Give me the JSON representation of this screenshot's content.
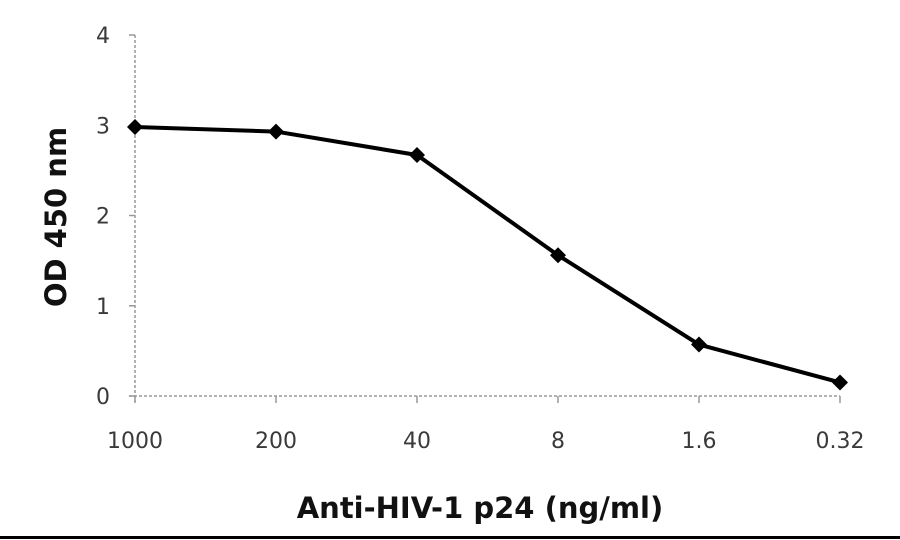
{
  "chart_data": {
    "type": "line",
    "title": "",
    "xlabel": "Anti-HIV-1 p24  (ng/ml)",
    "ylabel": "OD 450 nm",
    "categories": [
      "1000",
      "200",
      "40",
      "8",
      "1.6",
      "0.32"
    ],
    "series": [
      {
        "name": "OD 450 nm",
        "values": [
          2.98,
          2.93,
          2.67,
          1.56,
          0.57,
          0.15
        ],
        "color": "#000000",
        "marker": "diamond"
      }
    ],
    "ylim": [
      0,
      4
    ],
    "yticks": [
      0,
      1,
      2,
      3,
      4
    ],
    "grid": false,
    "legend": null
  }
}
